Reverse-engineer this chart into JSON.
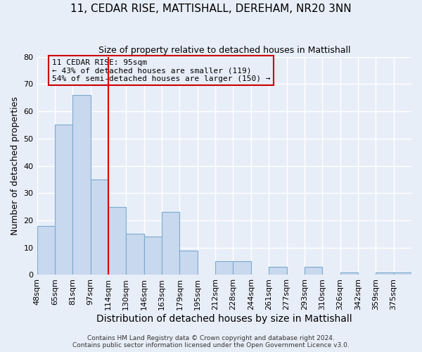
{
  "title": "11, CEDAR RISE, MATTISHALL, DEREHAM, NR20 3NN",
  "subtitle": "Size of property relative to detached houses in Mattishall",
  "xlabel": "Distribution of detached houses by size in Mattishall",
  "ylabel": "Number of detached properties",
  "bin_labels": [
    "48sqm",
    "65sqm",
    "81sqm",
    "97sqm",
    "114sqm",
    "130sqm",
    "146sqm",
    "163sqm",
    "179sqm",
    "195sqm",
    "212sqm",
    "228sqm",
    "244sqm",
    "261sqm",
    "277sqm",
    "293sqm",
    "310sqm",
    "326sqm",
    "342sqm",
    "359sqm",
    "375sqm"
  ],
  "counts": [
    18,
    55,
    66,
    35,
    25,
    15,
    14,
    23,
    9,
    0,
    5,
    5,
    0,
    3,
    0,
    3,
    0,
    1,
    0,
    1,
    1
  ],
  "bar_color": "#c8d8ee",
  "bar_edge_color": "#7aabcf",
  "vline_index": 3,
  "vline_color": "#dd0000",
  "annotation_text": "11 CEDAR RISE: 95sqm\n← 43% of detached houses are smaller (119)\n54% of semi-detached houses are larger (150) →",
  "annotation_box_edge_color": "#cc0000",
  "ylim": [
    0,
    80
  ],
  "yticks": [
    0,
    10,
    20,
    30,
    40,
    50,
    60,
    70,
    80
  ],
  "background_color": "#e8eef8",
  "grid_color": "#ffffff",
  "title_fontsize": 11,
  "subtitle_fontsize": 9,
  "ylabel_fontsize": 9,
  "xlabel_fontsize": 10,
  "tick_fontsize": 8,
  "annotation_fontsize": 8,
  "footer_line1": "Contains HM Land Registry data © Crown copyright and database right 2024.",
  "footer_line2": "Contains public sector information licensed under the Open Government Licence v3.0."
}
